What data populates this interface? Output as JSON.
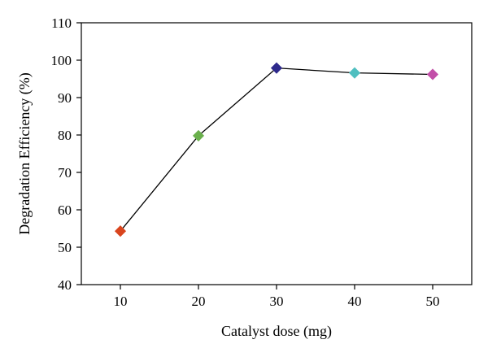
{
  "chart_data": {
    "type": "line",
    "xlabel": "Catalyst dose (mg)",
    "ylabel": "Degradation Efficiency (%)",
    "xlim": [
      5,
      55
    ],
    "ylim": [
      40,
      110
    ],
    "x_ticks": [
      10,
      20,
      30,
      40,
      50
    ],
    "y_ticks": [
      40,
      50,
      60,
      70,
      80,
      90,
      100,
      110
    ],
    "grid": false,
    "marker": "diamond",
    "series": [
      {
        "x": [
          10,
          20,
          30,
          40,
          50
        ],
        "y": [
          54.3,
          79.8,
          97.9,
          96.6,
          96.2
        ],
        "line_color": "#000000",
        "marker_colors": [
          "#d9451e",
          "#6ab04c",
          "#2e2a8c",
          "#4fbfc0",
          "#c24fa8"
        ]
      }
    ]
  }
}
